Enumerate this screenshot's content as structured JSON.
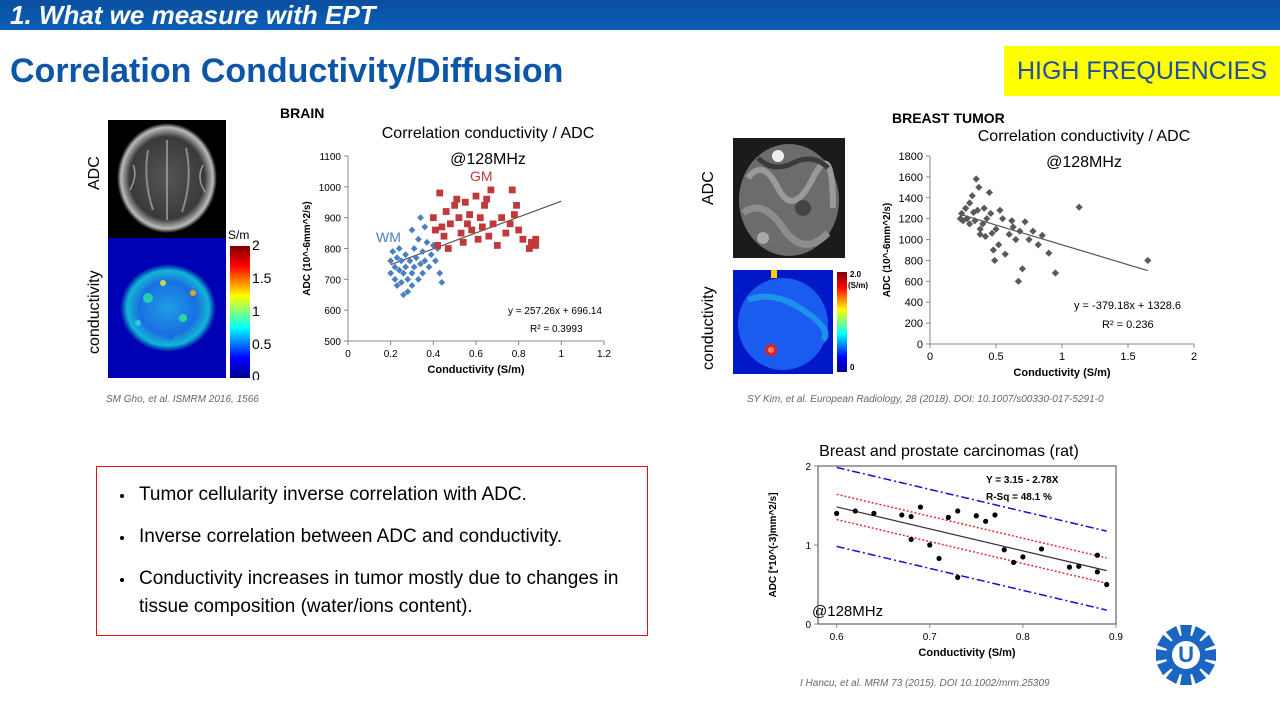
{
  "header": {
    "section_title": "1. What we measure with EPT",
    "slide_title": "Correlation Conductivity/Diffusion",
    "badge": "HIGH FREQUENCIES"
  },
  "brain": {
    "label": "BRAIN",
    "image_label_top": "ADC",
    "image_label_bottom": "conductivity",
    "colorbar_unit": "S/m",
    "colorbar_ticks": [
      "2",
      "1.5",
      "1",
      "0.5",
      "0"
    ],
    "citation": "SM Gho, et al. ISMRM 2016, 1566"
  },
  "breast": {
    "label": "BREAST TUMOR",
    "image_label_top": "ADC",
    "image_label_bottom": "conductivity",
    "colorbar_top": "2.0",
    "colorbar_unit": "(S/m)",
    "colorbar_bottom": "0",
    "citation": "SY Kim, et al. European Radiology, 28 (2018). DOI: 10.1007/s00330-017-5291-0"
  },
  "rat": {
    "citation": "I Hancu, et al. MRM 73 (2015). DOI 10.1002/mrm.25309"
  },
  "bullets": [
    "Tumor cellularity inverse correlation with ADC.",
    "Inverse correlation between ADC and conductivity.",
    "Conductivity increases in tumor mostly due to changes in tissue composition (water/ions content)."
  ],
  "colors": {
    "accent": "#0b56a8",
    "gm": "#c0393b",
    "wm": "#4a7fc1",
    "breast": "#595959",
    "badge": "#ffff00"
  },
  "chart_data": [
    {
      "id": "brain",
      "type": "scatter",
      "title": "Correlation conductivity / ADC",
      "subtitle": "@128MHz",
      "xlabel": "Conductivity (S/m)",
      "ylabel": "ADC (10^-6mm^2/s)",
      "xlim": [
        0,
        1.2
      ],
      "ylim": [
        500,
        1100
      ],
      "xticks": [
        "0",
        "0.2",
        "0.4",
        "0.6",
        "0.8",
        "1",
        "1.2"
      ],
      "yticks": [
        "500",
        "600",
        "700",
        "800",
        "900",
        "1000",
        "1100"
      ],
      "equation": "y = 257.26x + 696.14",
      "r2": "R² = 0.3993",
      "trendline": {
        "slope": 257.26,
        "intercept": 696.14,
        "x_range": [
          0.2,
          1.0
        ]
      },
      "series": [
        {
          "name": "WM",
          "marker": "diamond",
          "points": [
            [
              0.2,
              760
            ],
            [
              0.2,
              720
            ],
            [
              0.21,
              790
            ],
            [
              0.22,
              740
            ],
            [
              0.22,
              700
            ],
            [
              0.23,
              770
            ],
            [
              0.23,
              680
            ],
            [
              0.24,
              800
            ],
            [
              0.24,
              730
            ],
            [
              0.25,
              760
            ],
            [
              0.25,
              690
            ],
            [
              0.26,
              720
            ],
            [
              0.26,
              650
            ],
            [
              0.27,
              780
            ],
            [
              0.27,
              740
            ],
            [
              0.28,
              700
            ],
            [
              0.28,
              660
            ],
            [
              0.29,
              760
            ],
            [
              0.3,
              720
            ],
            [
              0.3,
              680
            ],
            [
              0.31,
              800
            ],
            [
              0.31,
              740
            ],
            [
              0.32,
              770
            ],
            [
              0.33,
              700
            ],
            [
              0.33,
              830
            ],
            [
              0.34,
              750
            ],
            [
              0.35,
              790
            ],
            [
              0.35,
              720
            ],
            [
              0.36,
              760
            ],
            [
              0.37,
              820
            ],
            [
              0.38,
              740
            ],
            [
              0.39,
              780
            ],
            [
              0.4,
              810
            ],
            [
              0.41,
              760
            ],
            [
              0.42,
              800
            ],
            [
              0.43,
              720
            ],
            [
              0.44,
              690
            ],
            [
              0.36,
              870
            ],
            [
              0.34,
              900
            ],
            [
              0.3,
              860
            ]
          ]
        },
        {
          "name": "GM",
          "marker": "square",
          "points": [
            [
              0.4,
              900
            ],
            [
              0.41,
              860
            ],
            [
              0.42,
              810
            ],
            [
              0.43,
              980
            ],
            [
              0.44,
              870
            ],
            [
              0.45,
              840
            ],
            [
              0.46,
              920
            ],
            [
              0.47,
              800
            ],
            [
              0.48,
              880
            ],
            [
              0.5,
              940
            ],
            [
              0.51,
              960
            ],
            [
              0.52,
              900
            ],
            [
              0.53,
              850
            ],
            [
              0.54,
              820
            ],
            [
              0.55,
              950
            ],
            [
              0.56,
              880
            ],
            [
              0.57,
              910
            ],
            [
              0.58,
              860
            ],
            [
              0.6,
              970
            ],
            [
              0.61,
              830
            ],
            [
              0.62,
              900
            ],
            [
              0.63,
              870
            ],
            [
              0.64,
              940
            ],
            [
              0.65,
              960
            ],
            [
              0.66,
              840
            ],
            [
              0.67,
              990
            ],
            [
              0.68,
              880
            ],
            [
              0.7,
              810
            ],
            [
              0.72,
              900
            ],
            [
              0.74,
              850
            ],
            [
              0.76,
              880
            ],
            [
              0.78,
              910
            ],
            [
              0.8,
              860
            ],
            [
              0.82,
              830
            ],
            [
              0.85,
              800
            ],
            [
              0.86,
              820
            ],
            [
              0.88,
              830
            ],
            [
              0.88,
              810
            ],
            [
              0.79,
              940
            ],
            [
              0.77,
              990
            ]
          ]
        }
      ],
      "labels": [
        "WM",
        "GM"
      ]
    },
    {
      "id": "breast",
      "type": "scatter",
      "title": "Correlation conductivity / ADC",
      "subtitle": "@128MHz",
      "xlabel": "Conductivity (S/m)",
      "ylabel": "ADC (10^-6mm^2/s)",
      "xlim": [
        0,
        2
      ],
      "ylim": [
        0,
        1800
      ],
      "xticks": [
        "0",
        "0.5",
        "1",
        "1.5",
        "2"
      ],
      "yticks": [
        "0",
        "200",
        "400",
        "600",
        "800",
        "1000",
        "1200",
        "1400",
        "1600",
        "1800"
      ],
      "equation": "y = -379.18x + 1328.6",
      "r2": "R² = 0.236",
      "trendline": {
        "slope": -379.18,
        "intercept": 1328.6,
        "x_range": [
          0.22,
          1.65
        ]
      },
      "series": [
        {
          "name": "tumor",
          "marker": "diamond",
          "points": [
            [
              0.23,
              1200
            ],
            [
              0.24,
              1250
            ],
            [
              0.25,
              1180
            ],
            [
              0.27,
              1300
            ],
            [
              0.28,
              1200
            ],
            [
              0.3,
              1350
            ],
            [
              0.3,
              1150
            ],
            [
              0.32,
              1420
            ],
            [
              0.33,
              1260
            ],
            [
              0.34,
              1180
            ],
            [
              0.35,
              1580
            ],
            [
              0.36,
              1280
            ],
            [
              0.37,
              1500
            ],
            [
              0.38,
              1100
            ],
            [
              0.38,
              1050
            ],
            [
              0.4,
              1150
            ],
            [
              0.41,
              1300
            ],
            [
              0.42,
              1030
            ],
            [
              0.43,
              1200
            ],
            [
              0.45,
              1450
            ],
            [
              0.46,
              1250
            ],
            [
              0.47,
              1060
            ],
            [
              0.48,
              900
            ],
            [
              0.49,
              800
            ],
            [
              0.5,
              1100
            ],
            [
              0.52,
              950
            ],
            [
              0.53,
              1280
            ],
            [
              0.55,
              1200
            ],
            [
              0.57,
              860
            ],
            [
              0.6,
              1050
            ],
            [
              0.62,
              1180
            ],
            [
              0.63,
              1120
            ],
            [
              0.65,
              1000
            ],
            [
              0.67,
              600
            ],
            [
              0.68,
              1080
            ],
            [
              0.7,
              720
            ],
            [
              0.72,
              1170
            ],
            [
              0.75,
              1000
            ],
            [
              0.78,
              1080
            ],
            [
              0.82,
              950
            ],
            [
              0.85,
              1040
            ],
            [
              0.9,
              870
            ],
            [
              0.95,
              680
            ],
            [
              1.13,
              1310
            ],
            [
              1.65,
              800
            ]
          ]
        }
      ]
    },
    {
      "id": "rat",
      "type": "scatter",
      "title": "Breast and prostate carcinomas (rat)",
      "subtitle": "@128MHz",
      "xlabel": "Conductivity (S/m)",
      "ylabel": "ADC [*10^(-3)mm^2/s]",
      "xlim": [
        0.58,
        0.9
      ],
      "ylim": [
        0,
        2
      ],
      "xticks": [
        "0.6",
        "0.7",
        "0.8",
        "0.9"
      ],
      "yticks": [
        "0",
        "1",
        "2"
      ],
      "equation": "Y = 3.15 - 2.78X",
      "r2": "R-Sq = 48.1 %",
      "trendline": {
        "slope": -2.78,
        "intercept": 3.15,
        "x_range": [
          0.6,
          0.89
        ]
      },
      "confidence_band_halfwidth": 0.16,
      "prediction_band_halfwidth": 0.5,
      "series": [
        {
          "name": "carcinomas",
          "marker": "circle",
          "points": [
            [
              0.6,
              1.4
            ],
            [
              0.62,
              1.43
            ],
            [
              0.64,
              1.4
            ],
            [
              0.67,
              1.38
            ],
            [
              0.68,
              1.36
            ],
            [
              0.69,
              1.48
            ],
            [
              0.68,
              1.07
            ],
            [
              0.7,
              1.0
            ],
            [
              0.71,
              0.83
            ],
            [
              0.72,
              1.35
            ],
            [
              0.73,
              1.43
            ],
            [
              0.73,
              0.59
            ],
            [
              0.75,
              1.37
            ],
            [
              0.76,
              1.3
            ],
            [
              0.77,
              1.38
            ],
            [
              0.78,
              0.94
            ],
            [
              0.79,
              0.78
            ],
            [
              0.8,
              0.85
            ],
            [
              0.82,
              0.95
            ],
            [
              0.85,
              0.72
            ],
            [
              0.86,
              0.73
            ],
            [
              0.88,
              0.87
            ],
            [
              0.88,
              0.66
            ],
            [
              0.89,
              0.5
            ]
          ]
        }
      ]
    }
  ]
}
